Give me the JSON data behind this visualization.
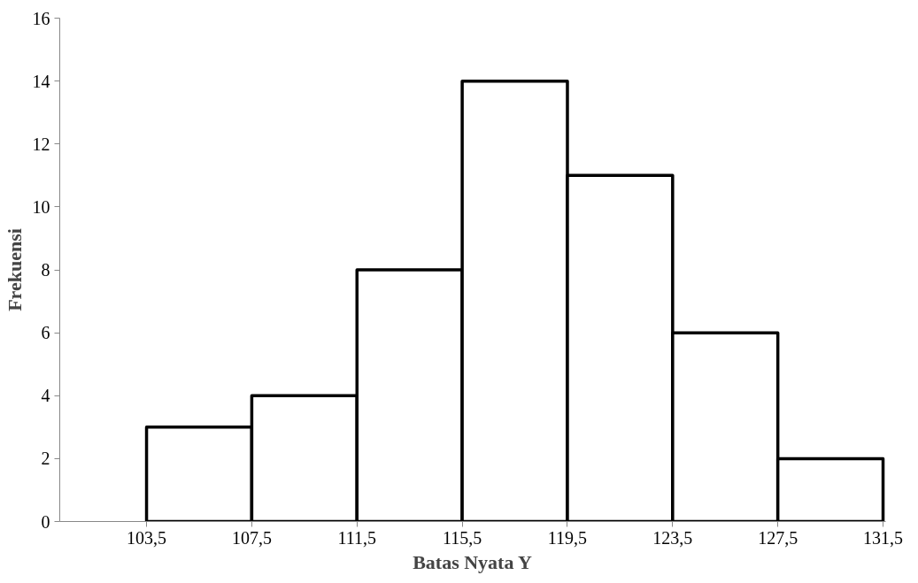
{
  "chart_data": {
    "type": "histogram",
    "xlabel": "Batas Nyata Y",
    "ylabel": "Frekuensi",
    "bins": [
      103.5,
      107.5,
      111.5,
      115.5,
      119.5,
      123.5,
      127.5,
      131.5
    ],
    "values": [
      3,
      4,
      8,
      14,
      11,
      6,
      2
    ],
    "color": "#ffffff",
    "xlim": [
      100.2,
      131.6
    ],
    "xticks": [
      {
        "value": 103.5,
        "label": "103,5"
      },
      {
        "value": 107.5,
        "label": "107,5"
      },
      {
        "value": 111.5,
        "label": "111,5"
      },
      {
        "value": 115.5,
        "label": "115,5"
      },
      {
        "value": 119.5,
        "label": "119,5"
      },
      {
        "value": 123.5,
        "label": "123,5"
      },
      {
        "value": 127.5,
        "label": "127,5"
      },
      {
        "value": 131.5,
        "label": "131,5"
      }
    ],
    "ylim": [
      0,
      16
    ],
    "yticks": [
      0,
      2,
      4,
      6,
      8,
      10,
      12,
      14,
      16
    ],
    "grid": false
  }
}
